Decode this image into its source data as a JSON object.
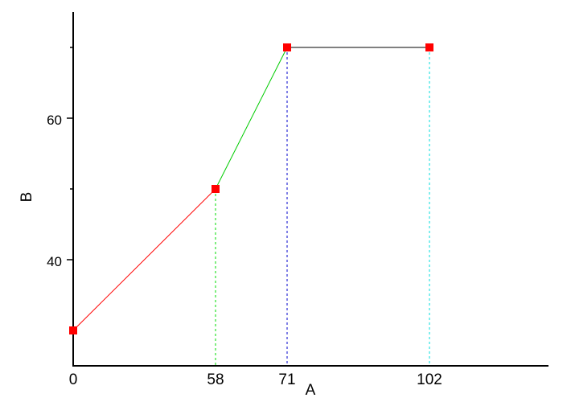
{
  "chart_data": {
    "type": "line",
    "xlabel": "A",
    "ylabel": "B",
    "x_tick_labels": [
      "0",
      "58",
      "71",
      "102"
    ],
    "y_tick_labels": [
      "40",
      "60"
    ],
    "ylim": [
      25,
      75
    ],
    "grid": false,
    "legend": "none",
    "points": [
      {
        "x": 0,
        "y": 30
      },
      {
        "x": 58,
        "y": 50
      },
      {
        "x": 71,
        "y": 70
      },
      {
        "x": 102,
        "y": 70
      }
    ],
    "segment_colors": [
      "#ff0000",
      "#00cc00",
      "#000000"
    ],
    "drop_line_colors": [
      "#ff0000",
      "#00dd00",
      "#0000cc",
      "#00dddd"
    ],
    "marker_color": "#ff0000"
  }
}
